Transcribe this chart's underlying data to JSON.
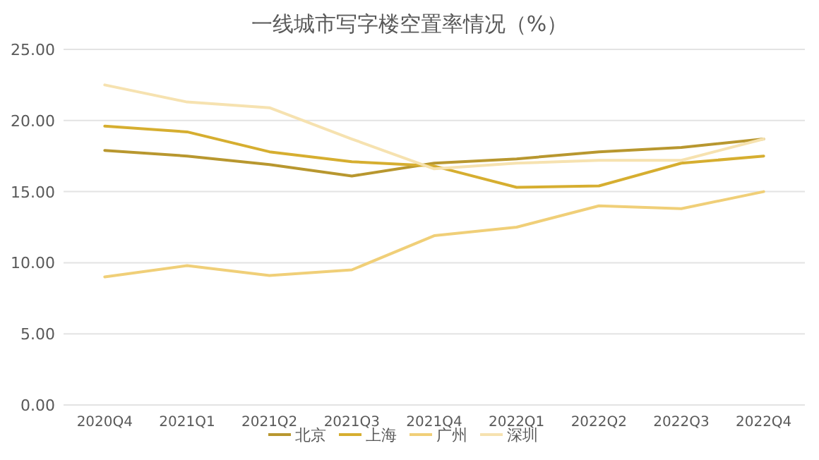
{
  "chart_data": {
    "type": "line",
    "title": "一线城市写字楼空置率情况（%）",
    "categories": [
      "2020Q4",
      "2021Q1",
      "2021Q2",
      "2021Q3",
      "2021Q4",
      "2022Q1",
      "2022Q2",
      "2022Q3",
      "2022Q4"
    ],
    "series": [
      {
        "name": "北京",
        "color": "#b8972f",
        "values": [
          17.9,
          17.5,
          16.9,
          16.1,
          17.0,
          17.3,
          17.8,
          18.1,
          18.7
        ]
      },
      {
        "name": "上海",
        "color": "#d6ae30",
        "values": [
          19.6,
          19.2,
          17.8,
          17.1,
          16.8,
          15.3,
          15.4,
          17.0,
          17.5
        ]
      },
      {
        "name": "广州",
        "color": "#f0cf78",
        "values": [
          9.0,
          9.8,
          9.1,
          9.5,
          11.9,
          12.5,
          14.0,
          13.8,
          15.0
        ]
      },
      {
        "name": "深圳",
        "color": "#f6e2b0",
        "values": [
          22.5,
          21.3,
          20.9,
          18.7,
          16.6,
          17.0,
          17.2,
          17.2,
          18.7
        ]
      }
    ],
    "ylim": [
      0,
      25
    ],
    "yticks": [
      {
        "value": 0,
        "label": "0.00"
      },
      {
        "value": 5,
        "label": "5.00"
      },
      {
        "value": 10,
        "label": "10.00"
      },
      {
        "value": 15,
        "label": "15.00"
      },
      {
        "value": 20,
        "label": "20.00"
      },
      {
        "value": 25,
        "label": "25.00"
      }
    ],
    "grid": "y",
    "legend": "bottom",
    "marker": "none",
    "line_style": "solid"
  }
}
